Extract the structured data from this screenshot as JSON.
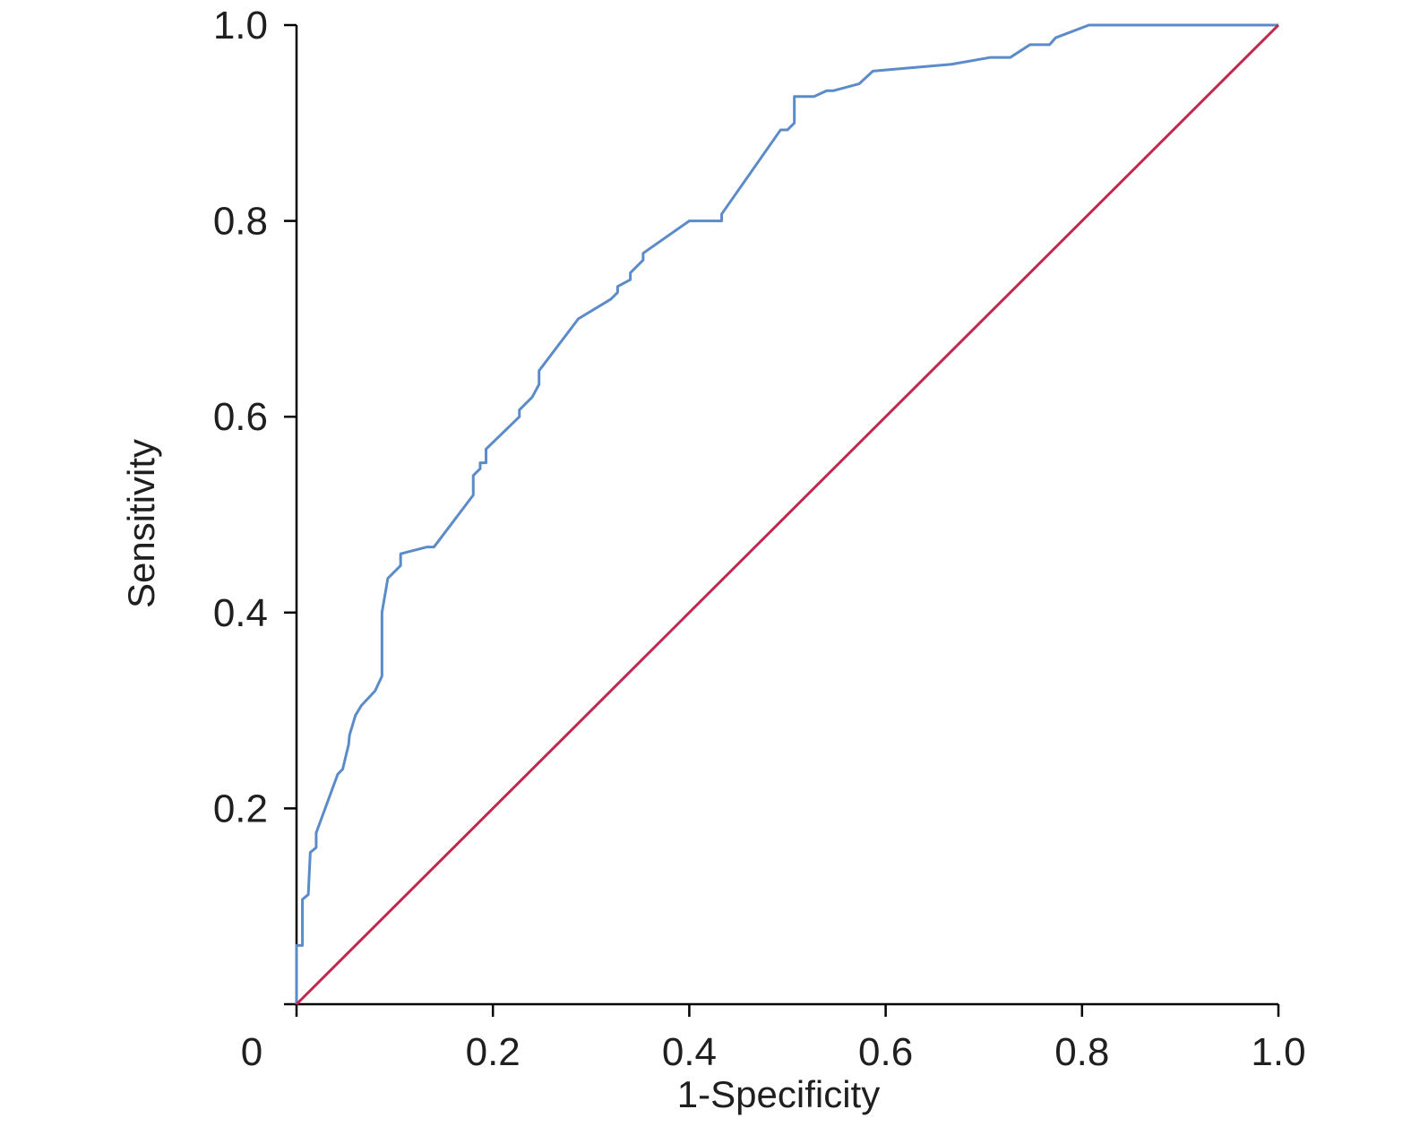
{
  "chart_data": {
    "type": "line",
    "xlabel": "1-Specificity",
    "ylabel": "Sensitivity",
    "xlim": [
      0,
      1
    ],
    "ylim": [
      0,
      1
    ],
    "x_ticks": [
      "0",
      "0.2",
      "0.4",
      "0.6",
      "0.8",
      "1.0"
    ],
    "y_ticks": [
      "0.2",
      "0.4",
      "0.6",
      "0.8",
      "1.0"
    ],
    "grid": false,
    "legend": "none",
    "series": [
      {
        "color": "#5b8bc9",
        "points": [
          [
            0,
            0
          ],
          [
            0,
            0.06
          ],
          [
            0.006,
            0.06
          ],
          [
            0.006,
            0.107
          ],
          [
            0.012,
            0.112
          ],
          [
            0.014,
            0.155
          ],
          [
            0.02,
            0.16
          ],
          [
            0.02,
            0.175
          ],
          [
            0.042,
            0.235
          ],
          [
            0.047,
            0.24
          ],
          [
            0.053,
            0.265
          ],
          [
            0.054,
            0.275
          ],
          [
            0.06,
            0.295
          ],
          [
            0.066,
            0.305
          ],
          [
            0.08,
            0.32
          ],
          [
            0.087,
            0.335
          ],
          [
            0.087,
            0.4
          ],
          [
            0.093,
            0.435
          ],
          [
            0.106,
            0.448
          ],
          [
            0.106,
            0.46
          ],
          [
            0.133,
            0.467
          ],
          [
            0.14,
            0.467
          ],
          [
            0.18,
            0.52
          ],
          [
            0.18,
            0.54
          ],
          [
            0.187,
            0.547
          ],
          [
            0.187,
            0.553
          ],
          [
            0.193,
            0.553
          ],
          [
            0.193,
            0.567
          ],
          [
            0.227,
            0.6
          ],
          [
            0.227,
            0.607
          ],
          [
            0.24,
            0.62
          ],
          [
            0.247,
            0.633
          ],
          [
            0.247,
            0.647
          ],
          [
            0.287,
            0.7
          ],
          [
            0.32,
            0.72
          ],
          [
            0.327,
            0.727
          ],
          [
            0.327,
            0.733
          ],
          [
            0.34,
            0.74
          ],
          [
            0.34,
            0.747
          ],
          [
            0.353,
            0.76
          ],
          [
            0.353,
            0.767
          ],
          [
            0.4,
            0.8
          ],
          [
            0.433,
            0.8
          ],
          [
            0.433,
            0.807
          ],
          [
            0.493,
            0.893
          ],
          [
            0.5,
            0.893
          ],
          [
            0.507,
            0.9
          ],
          [
            0.507,
            0.927
          ],
          [
            0.527,
            0.927
          ],
          [
            0.54,
            0.933
          ],
          [
            0.547,
            0.933
          ],
          [
            0.573,
            0.94
          ],
          [
            0.587,
            0.953
          ],
          [
            0.667,
            0.96
          ],
          [
            0.707,
            0.967
          ],
          [
            0.727,
            0.967
          ],
          [
            0.747,
            0.98
          ],
          [
            0.767,
            0.98
          ],
          [
            0.773,
            0.987
          ],
          [
            0.807,
            1.0
          ],
          [
            1.0,
            1.0
          ]
        ]
      },
      {
        "color": "#c0284f",
        "points": [
          [
            0,
            0
          ],
          [
            1,
            1
          ]
        ]
      }
    ]
  }
}
